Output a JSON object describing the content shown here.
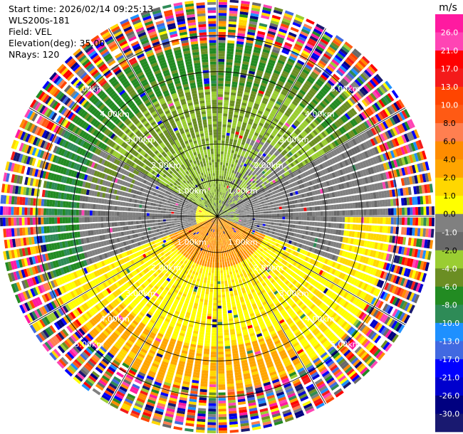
{
  "header": {
    "start_time": "Start time: 2026/02/14 09:25:13",
    "site": "WLS200s-181",
    "field": "Field: VEL",
    "elevation": "Elevation(deg): 35.00",
    "nrays": "NRays: 120"
  },
  "chart_data": {
    "type": "heatmap",
    "projection": "polar-ppi",
    "title": "",
    "nrays": 120,
    "max_range_km": 6.0,
    "range_rings_km": [
      1,
      2,
      3,
      4,
      5
    ],
    "range_labels": [
      "1.00km",
      "2.00km",
      "3.00km",
      "4.00km",
      "5.00km"
    ],
    "radial_lines_deg": [
      0,
      30,
      60,
      90,
      120,
      150,
      180,
      210,
      240,
      270,
      300,
      330
    ],
    "colorbar": {
      "unit": "m/s",
      "levels": [
        "26.0",
        "21.0",
        "17.0",
        "13.0",
        "10.0",
        "8.0",
        "6.0",
        "4.0",
        "2.0",
        "1.0",
        "0.0",
        "-1.0",
        "-2.0",
        "-4.0",
        "-6.0",
        "-8.0",
        "-10.0",
        "-13.0",
        "-17.0",
        "-21.0",
        "-26.0",
        "-30.0"
      ],
      "colors": [
        "#ff1aa0",
        "#ff44b4",
        "#ff0000",
        "#f41a1a",
        "#ff4500",
        "#ff5a14",
        "#ff7f50",
        "#ff8c00",
        "#ffa500",
        "#ffd700",
        "#ffff00",
        "#808080",
        "#696969",
        "#9acd32",
        "#6b8e23",
        "#228b22",
        "#2e8b57",
        "#1e90ff",
        "#4169e1",
        "#0000ff",
        "#0000cd",
        "#000080",
        "#191970"
      ]
    },
    "sectors": [
      {
        "azimuth_range_deg": [
          300,
          360
        ],
        "range_km": [
          0,
          4.8
        ],
        "field": "-6 to -4 (green / olive)"
      },
      {
        "azimuth_range_deg": [
          0,
          60
        ],
        "range_km": [
          0,
          4.8
        ],
        "field": "-4 to -2 (olive / yellow-green)"
      },
      {
        "azimuth_range_deg": [
          60,
          110
        ],
        "range_km": [
          0.5,
          4.8
        ],
        "field": "-1 to 0 (gray)"
      },
      {
        "azimuth_range_deg": [
          110,
          250
        ],
        "range_km": [
          0,
          4.8
        ],
        "field": "1 to 6 (yellow / orange)"
      },
      {
        "azimuth_range_deg": [
          250,
          300
        ],
        "range_km": [
          0.5,
          4.8
        ],
        "field": "-1 to 0 (gray)"
      },
      {
        "azimuth_range_deg": [
          0,
          360
        ],
        "range_km": [
          4.8,
          6.0
        ],
        "field": "noise (mixed)"
      }
    ]
  }
}
